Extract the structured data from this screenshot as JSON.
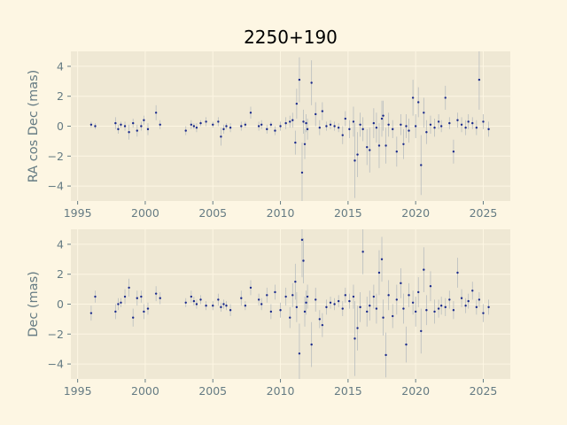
{
  "chart_data": {
    "type": "scatter",
    "title": "2250+190",
    "colors": {
      "background": "#fdf6e3",
      "axes_face": "#efe8d4",
      "points": "#1a2a8c",
      "errorbars": "#b8bdbf",
      "text": "#657b83"
    },
    "grid": true,
    "panels": [
      {
        "ylabel": "RA cos Dec (mas)",
        "xlim": [
          1994.5,
          2027.0
        ],
        "ylim": [
          -5,
          5
        ],
        "xticks": [
          "1995",
          "2000",
          "2005",
          "2010",
          "2015",
          "2020",
          "2025"
        ],
        "yticks": [
          "4",
          "2",
          "0",
          "−2",
          "−4"
        ],
        "x": [
          1996.0,
          1996.3,
          1997.8,
          1998.0,
          1998.2,
          1998.5,
          1998.8,
          1999.1,
          1999.4,
          1999.7,
          1999.9,
          2000.2,
          2000.8,
          2001.1,
          2003.0,
          2003.4,
          2003.6,
          2003.8,
          2004.1,
          2004.5,
          2005.0,
          2005.4,
          2005.6,
          2005.8,
          2006.0,
          2006.3,
          2007.1,
          2007.4,
          2007.8,
          2008.4,
          2008.6,
          2009.0,
          2009.3,
          2009.6,
          2010.0,
          2010.4,
          2010.7,
          2010.9,
          2011.1,
          2011.2,
          2011.4,
          2011.6,
          2011.7,
          2011.8,
          2011.9,
          2012.0,
          2012.3,
          2012.6,
          2012.9,
          2013.1,
          2013.4,
          2013.7,
          2014.0,
          2014.3,
          2014.6,
          2014.8,
          2015.1,
          2015.4,
          2015.5,
          2015.7,
          2015.9,
          2016.1,
          2016.4,
          2016.6,
          2016.9,
          2017.1,
          2017.3,
          2017.5,
          2017.6,
          2017.8,
          2018.0,
          2018.3,
          2018.6,
          2018.9,
          2019.1,
          2019.3,
          2019.5,
          2019.8,
          2020.0,
          2020.2,
          2020.4,
          2020.6,
          2020.8,
          2021.1,
          2021.4,
          2021.7,
          2021.9,
          2022.2,
          2022.5,
          2022.8,
          2023.1,
          2023.4,
          2023.7,
          2023.9,
          2024.2,
          2024.5,
          2024.7,
          2025.0,
          2025.4
        ],
        "y": [
          0.1,
          0.0,
          0.2,
          -0.2,
          0.1,
          0.0,
          -0.4,
          0.2,
          -0.3,
          0.0,
          0.4,
          -0.2,
          0.9,
          0.1,
          -0.3,
          0.1,
          0.0,
          -0.1,
          0.2,
          0.3,
          0.1,
          0.3,
          -0.7,
          -0.2,
          0.0,
          -0.1,
          0.0,
          0.1,
          0.9,
          0.0,
          0.1,
          -0.2,
          0.1,
          -0.3,
          0.0,
          0.2,
          0.3,
          0.4,
          -1.1,
          1.5,
          3.1,
          -3.1,
          0.3,
          -1.2,
          0.2,
          -0.2,
          2.9,
          0.8,
          -0.1,
          1.0,
          0.0,
          0.1,
          0.0,
          -0.1,
          -0.6,
          0.5,
          -0.2,
          0.3,
          -2.3,
          -1.9,
          0.1,
          -0.2,
          -1.4,
          -1.6,
          0.2,
          -0.1,
          -1.3,
          0.5,
          0.7,
          -1.3,
          0.1,
          -0.2,
          -1.7,
          0.1,
          -1.2,
          0.0,
          -0.3,
          1.9,
          0.0,
          1.6,
          -2.6,
          0.9,
          -0.4,
          0.1,
          -0.1,
          0.3,
          0.0,
          1.9,
          0.2,
          -1.7,
          0.4,
          0.1,
          -0.1,
          0.3,
          0.2,
          -0.1,
          3.1,
          0.3,
          -0.2
        ],
        "yerr": [
          0.2,
          0.2,
          0.4,
          0.3,
          0.2,
          0.3,
          0.5,
          0.3,
          0.4,
          0.3,
          0.3,
          0.4,
          0.5,
          0.3,
          0.3,
          0.3,
          0.2,
          0.3,
          0.2,
          0.3,
          0.2,
          0.3,
          0.6,
          0.3,
          0.2,
          0.3,
          0.3,
          0.2,
          0.4,
          0.3,
          0.3,
          0.3,
          0.2,
          0.3,
          0.3,
          0.4,
          0.4,
          0.5,
          0.8,
          1.0,
          1.5,
          2.0,
          0.8,
          1.0,
          0.6,
          0.7,
          1.5,
          0.8,
          0.5,
          0.6,
          0.3,
          0.3,
          0.3,
          0.3,
          0.6,
          0.5,
          0.6,
          1.0,
          2.5,
          1.5,
          0.8,
          0.8,
          1.2,
          1.5,
          1.0,
          1.0,
          1.5,
          1.2,
          1.0,
          1.2,
          0.8,
          0.6,
          1.0,
          0.7,
          1.0,
          0.8,
          0.8,
          1.2,
          0.8,
          1.0,
          2.0,
          1.0,
          0.8,
          0.6,
          0.6,
          0.5,
          0.4,
          0.8,
          0.4,
          0.8,
          0.5,
          0.5,
          0.5,
          0.5,
          0.4,
          0.5,
          2.0,
          0.5,
          0.5
        ]
      },
      {
        "ylabel": "Dec (mas)",
        "xlim": [
          1994.5,
          2027.0
        ],
        "ylim": [
          -5,
          5
        ],
        "xticks": [
          "1995",
          "2000",
          "2005",
          "2010",
          "2015",
          "2020",
          "2025"
        ],
        "yticks": [
          "4",
          "2",
          "0",
          "−2",
          "−4"
        ],
        "x": [
          1996.0,
          1996.3,
          1997.8,
          1998.0,
          1998.2,
          1998.5,
          1998.8,
          1999.1,
          1999.4,
          1999.7,
          1999.9,
          2000.2,
          2000.8,
          2001.1,
          2003.0,
          2003.4,
          2003.6,
          2003.8,
          2004.1,
          2004.5,
          2005.0,
          2005.4,
          2005.6,
          2005.8,
          2006.0,
          2006.3,
          2007.1,
          2007.4,
          2007.8,
          2008.4,
          2008.6,
          2009.0,
          2009.3,
          2009.6,
          2010.0,
          2010.4,
          2010.7,
          2010.9,
          2011.1,
          2011.2,
          2011.4,
          2011.6,
          2011.7,
          2011.8,
          2011.9,
          2012.0,
          2012.3,
          2012.6,
          2012.9,
          2013.1,
          2013.4,
          2013.7,
          2014.0,
          2014.3,
          2014.6,
          2014.8,
          2015.1,
          2015.4,
          2015.5,
          2015.7,
          2015.9,
          2016.1,
          2016.4,
          2016.6,
          2016.9,
          2017.1,
          2017.3,
          2017.5,
          2017.6,
          2017.8,
          2018.0,
          2018.3,
          2018.6,
          2018.9,
          2019.1,
          2019.3,
          2019.5,
          2019.8,
          2020.0,
          2020.2,
          2020.4,
          2020.6,
          2020.8,
          2021.1,
          2021.4,
          2021.7,
          2021.9,
          2022.2,
          2022.5,
          2022.8,
          2023.1,
          2023.4,
          2023.7,
          2023.9,
          2024.2,
          2024.5,
          2024.7,
          2025.0,
          2025.4
        ],
        "y": [
          -0.6,
          0.5,
          -0.5,
          0.0,
          0.1,
          0.5,
          1.1,
          -0.9,
          0.4,
          0.5,
          -0.5,
          -0.3,
          0.7,
          0.4,
          0.1,
          0.5,
          0.2,
          0.0,
          0.3,
          -0.1,
          -0.1,
          0.3,
          -0.2,
          0.0,
          -0.1,
          -0.4,
          0.4,
          -0.1,
          1.1,
          0.3,
          0.0,
          0.6,
          -0.5,
          0.8,
          -0.4,
          0.5,
          -0.9,
          0.6,
          1.5,
          -0.2,
          -3.3,
          4.3,
          2.9,
          -0.5,
          0.1,
          0.5,
          -2.7,
          0.3,
          -1.0,
          -1.4,
          -0.2,
          0.1,
          0.0,
          0.2,
          -0.3,
          0.6,
          0.2,
          0.5,
          -2.3,
          -1.6,
          -0.2,
          3.5,
          -0.5,
          -0.1,
          0.5,
          -0.3,
          2.1,
          3.0,
          -0.9,
          -3.4,
          0.6,
          -0.8,
          0.3,
          1.4,
          -0.3,
          -2.7,
          0.6,
          0.1,
          -0.5,
          0.8,
          -1.8,
          2.3,
          -0.4,
          1.2,
          -0.5,
          -0.3,
          -0.1,
          -0.2,
          0.3,
          -0.4,
          2.1,
          0.4,
          -0.1,
          0.2,
          0.9,
          -0.2,
          0.3,
          -0.6,
          -0.2
        ],
        "yerr": [
          0.5,
          0.4,
          0.5,
          0.4,
          0.3,
          0.5,
          0.6,
          0.6,
          0.5,
          0.4,
          0.5,
          0.4,
          0.5,
          0.4,
          0.3,
          0.4,
          0.3,
          0.3,
          0.3,
          0.3,
          0.3,
          0.4,
          0.3,
          0.3,
          0.3,
          0.4,
          0.5,
          0.3,
          0.5,
          0.4,
          0.4,
          0.5,
          0.5,
          0.5,
          0.5,
          0.6,
          0.7,
          0.8,
          1.2,
          1.0,
          2.0,
          2.5,
          1.5,
          1.0,
          0.8,
          0.8,
          1.5,
          0.8,
          0.6,
          0.8,
          0.5,
          0.4,
          0.4,
          0.4,
          0.5,
          0.5,
          0.5,
          0.8,
          2.5,
          1.5,
          1.0,
          1.5,
          1.0,
          1.0,
          0.8,
          1.0,
          1.5,
          1.5,
          1.2,
          1.5,
          1.0,
          0.8,
          1.0,
          1.0,
          1.0,
          1.2,
          0.8,
          0.8,
          1.0,
          1.0,
          1.5,
          1.5,
          1.0,
          1.0,
          0.8,
          0.6,
          0.6,
          0.6,
          0.6,
          0.6,
          1.0,
          0.6,
          0.5,
          0.5,
          0.6,
          0.5,
          0.5,
          0.6,
          0.5
        ]
      }
    ]
  }
}
